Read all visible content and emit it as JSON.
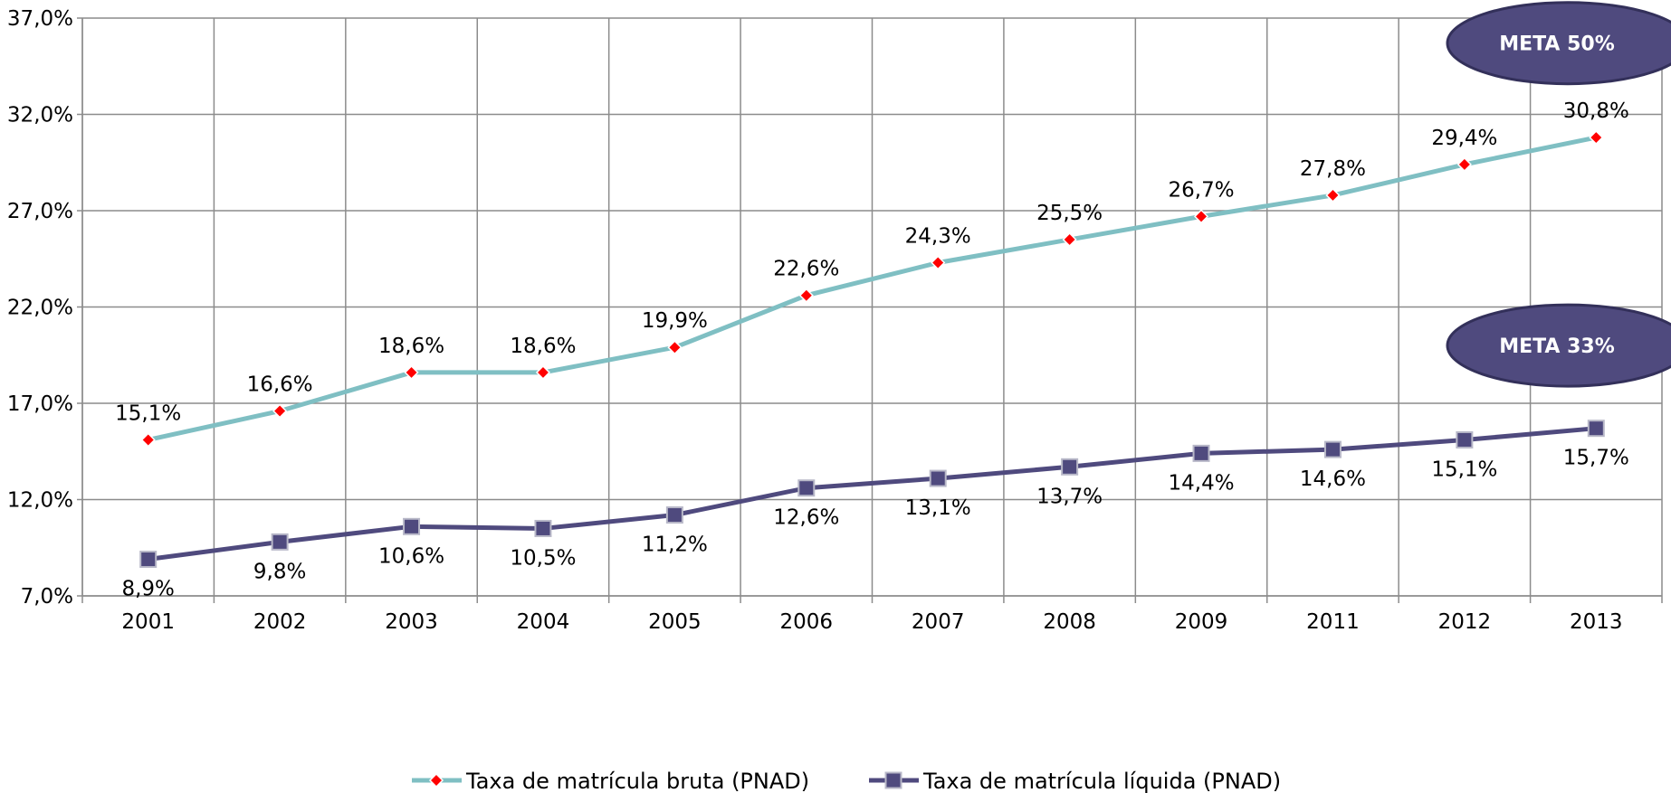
{
  "chart_data": {
    "type": "line",
    "categories": [
      "2001",
      "2002",
      "2003",
      "2004",
      "2005",
      "2006",
      "2007",
      "2008",
      "2009",
      "2011",
      "2012",
      "2013"
    ],
    "ylim": [
      7.0,
      37.0
    ],
    "y_ticks": [
      "7,0%",
      "12,0%",
      "17,0%",
      "22,0%",
      "27,0%",
      "32,0%",
      "37,0%"
    ],
    "grid": true,
    "legend_position": "bottom",
    "series": [
      {
        "name": "Taxa de matrícula bruta (PNAD)",
        "values": [
          15.1,
          16.6,
          18.6,
          18.6,
          19.9,
          22.6,
          24.3,
          25.5,
          26.7,
          27.8,
          29.4,
          30.8
        ],
        "labels": [
          "15,1%",
          "16,6%",
          "18,6%",
          "18,6%",
          "19,9%",
          "22,6%",
          "24,3%",
          "25,5%",
          "26,7%",
          "27,8%",
          "29,4%",
          "30,8%"
        ],
        "line_color": "#7fbfc3",
        "marker_color": "#ff0000",
        "marker": "diamond",
        "label_position": "above"
      },
      {
        "name": "Taxa de matrícula líquida (PNAD)",
        "values": [
          8.9,
          9.8,
          10.6,
          10.5,
          11.2,
          12.6,
          13.1,
          13.7,
          14.4,
          14.6,
          15.1,
          15.7
        ],
        "labels": [
          "8,9%",
          "9,8%",
          "10,6%",
          "10,5%",
          "11,2%",
          "12,6%",
          "13,1%",
          "13,7%",
          "14,4%",
          "14,6%",
          "15,1%",
          "15,7%"
        ],
        "line_color": "#4f4a7e",
        "marker_color": "#4f4a7e",
        "marker": "square",
        "label_position": "below"
      }
    ],
    "annotations": [
      {
        "text": "META 50%",
        "value": 35.7
      },
      {
        "text": "META 33%",
        "value": 20.0
      }
    ]
  }
}
